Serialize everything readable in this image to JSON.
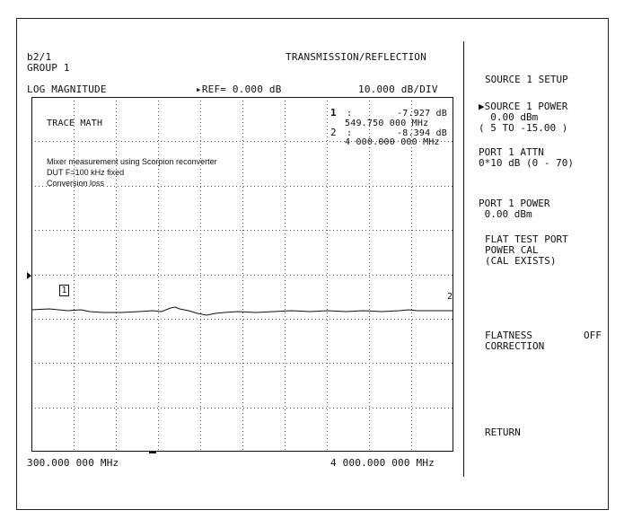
{
  "header": {
    "channel": "b2/1",
    "group": "GROUP 1",
    "mode": "TRANSMISSION/REFLECTION",
    "format": "LOG MAGNITUDE",
    "ref": "▸REF= 0.000 dB",
    "scale": "10.000 dB/DIV"
  },
  "trace_label": "TRACE MATH",
  "markers": {
    "m1_num": "1",
    "m1_colon": ":",
    "m1_value": "-7.927 dB",
    "m1_freq": "549.750 000 MHz",
    "m2_num": "2",
    "m2_colon": ":",
    "m2_value": "-8.394 dB",
    "m2_freq": "4 000.000 000 MHz",
    "box_label": "1",
    "end_label": "2"
  },
  "annotation": {
    "line1": "Mixer measurement using Scorpion reconverter",
    "line2": "DUT F=100 kHz fixed",
    "line3": "Conversion loss"
  },
  "footer": {
    "start": "300.000 000 MHz",
    "stop": "4 000.000 000 MHz"
  },
  "softkeys": {
    "title": "SOURCE 1 SETUP",
    "source_power_line1": "▶SOURCE 1 POWER",
    "source_power_line2": "  0.00 dBm",
    "source_power_line3": "( 5 TO -15.00 )",
    "attn_line1": "PORT 1 ATTN",
    "attn_line2": "0*10 dB (0 - 70)",
    "port_power_line1": "PORT 1 POWER",
    "port_power_line2": " 0.00 dBm",
    "flat_line1": "FLAT TEST PORT",
    "flat_line2": "POWER CAL",
    "flat_line3": "(CAL EXISTS)",
    "flatness_line1": "FLATNESS",
    "flatness_state": "OFF",
    "flatness_line2": "CORRECTION",
    "return": "RETURN"
  }
}
